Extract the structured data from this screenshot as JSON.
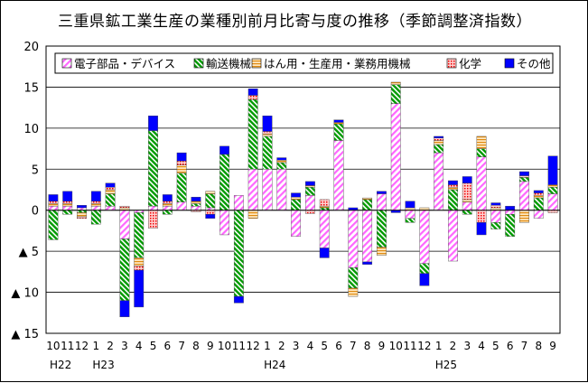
{
  "chart_data": {
    "type": "bar",
    "stacked": true,
    "title": "三重県鉱工業生産の業種別前月比寄与度の推移（季節調整済指数）",
    "ylim": [
      -15,
      20
    ],
    "yticks": [
      20,
      15,
      10,
      5,
      0,
      -5,
      -10,
      -15
    ],
    "ytick_labels": [
      "20",
      "15",
      "10",
      "5",
      "0",
      "▲ 5",
      "▲ 10",
      "▲ 15"
    ],
    "grid": "horizontal",
    "legend_position": "top-right",
    "categories": [
      "10",
      "11",
      "12",
      "1",
      "2",
      "3",
      "4",
      "5",
      "6",
      "7",
      "8",
      "9",
      "10",
      "11",
      "12",
      "1",
      "2",
      "3",
      "4",
      "5",
      "6",
      "7",
      "8",
      "9",
      "10",
      "11",
      "12",
      "1",
      "2",
      "3",
      "4",
      "5",
      "6",
      "7",
      "8",
      "9"
    ],
    "year_labels": [
      {
        "index": 0,
        "text": "H22"
      },
      {
        "index": 3,
        "text": "H23"
      },
      {
        "index": 15,
        "text": "H24"
      },
      {
        "index": 27,
        "text": "H25"
      }
    ],
    "series": [
      {
        "name": "電子部品・デバイス",
        "color": "#ff66ff",
        "pattern": "diag-pink",
        "values": [
          0.5,
          0.5,
          0.3,
          0.5,
          0.5,
          -3.5,
          -0.3,
          0.5,
          0.5,
          1.0,
          0.5,
          0.3,
          -3.0,
          1.8,
          5.0,
          5.0,
          5.0,
          -3.2,
          1.8,
          -4.6,
          8.5,
          -7.0,
          -6.3,
          2.0,
          13.0,
          -1.0,
          -6.5,
          7.0,
          -6.2,
          1.0,
          6.5,
          -1.5,
          -0.5,
          3.5,
          -1.0,
          2.0
        ]
      },
      {
        "name": "輸送機械",
        "color": "#00a000",
        "pattern": "diag-green",
        "values": [
          -3.6,
          -0.5,
          -0.3,
          -1.7,
          1.5,
          -7.5,
          -5.5,
          9.2,
          -0.5,
          3.5,
          0.3,
          1.7,
          6.8,
          -10.5,
          8.5,
          4.0,
          0.8,
          1.3,
          1.0,
          0.3,
          2.0,
          -2.5,
          1.3,
          -4.5,
          2.3,
          -0.5,
          -1.2,
          1.0,
          2.5,
          -0.5,
          1.0,
          -0.8,
          -2.7,
          0.5,
          1.5,
          0.8
        ]
      },
      {
        "name": "はん用・生産用・業務用機械",
        "color": "#ff9900",
        "pattern": "horiz-orange",
        "values": [
          0.3,
          0.3,
          -0.5,
          0.3,
          0.5,
          0.3,
          -1.0,
          0.0,
          0.3,
          1.0,
          0.3,
          0.3,
          0.0,
          0.0,
          -1.0,
          0.3,
          0.3,
          0.3,
          0.2,
          0.2,
          0.2,
          -1.0,
          0.2,
          -1.0,
          0.3,
          0.3,
          0.3,
          0.5,
          0.3,
          0.3,
          1.5,
          0.3,
          0.0,
          -1.5,
          0.3,
          0.3
        ]
      },
      {
        "name": "化学",
        "color": "#ff0000",
        "pattern": "dots-red",
        "values": [
          0.3,
          0.3,
          -0.2,
          0.3,
          0.3,
          0.2,
          -0.5,
          -2.2,
          0.3,
          0.5,
          -0.2,
          -0.5,
          0.0,
          0.0,
          0.5,
          0.3,
          0.0,
          0.0,
          -0.4,
          0.8,
          0.0,
          0.0,
          0.0,
          0.0,
          0.0,
          0.0,
          0.0,
          0.3,
          0.3,
          2.0,
          -1.5,
          0.3,
          0.0,
          0.2,
          0.3,
          -0.3
        ]
      },
      {
        "name": "その他",
        "color": "#0000ff",
        "pattern": "solid-blue",
        "values": [
          0.8,
          1.2,
          0.3,
          1.2,
          0.5,
          -2.0,
          -4.5,
          1.8,
          0.8,
          1.0,
          0.5,
          -0.5,
          1.0,
          -0.8,
          0.8,
          1.9,
          0.3,
          0.5,
          0.5,
          -1.2,
          0.3,
          0.3,
          -0.3,
          0.3,
          -0.3,
          0.8,
          -1.5,
          0.2,
          0.5,
          0.8,
          -1.5,
          0.3,
          0.5,
          0.5,
          0.3,
          3.5
        ]
      }
    ]
  }
}
